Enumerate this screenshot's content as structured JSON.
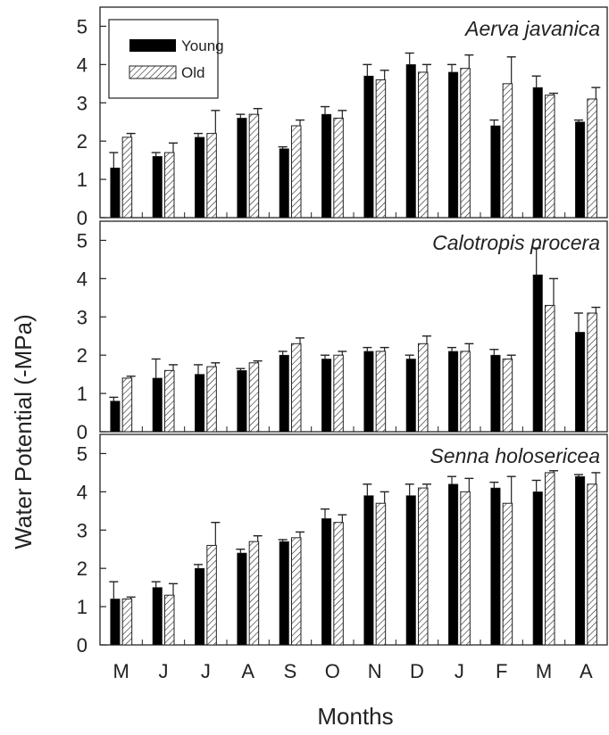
{
  "chart_data": {
    "type": "bar",
    "xlabel": "Months",
    "ylabel": "Water Potential (-MPa)",
    "categories": [
      "M",
      "J",
      "J",
      "A",
      "S",
      "O",
      "N",
      "D",
      "J",
      "F",
      "M",
      "A"
    ],
    "ylim": [
      0,
      5.5
    ],
    "yticks": [
      "0",
      "1",
      "2",
      "3",
      "4",
      "5"
    ],
    "legend": {
      "position": "top-left",
      "entries": [
        "Young",
        "Old"
      ]
    },
    "series_styles": {
      "Young": {
        "fill": "#000000"
      },
      "Old": {
        "fill": "hatched"
      }
    },
    "panels": [
      {
        "title": "Aerva javanica",
        "series": [
          {
            "name": "Young",
            "values": [
              1.3,
              1.6,
              2.1,
              2.6,
              1.8,
              2.7,
              3.7,
              4.0,
              3.8,
              2.4,
              3.4,
              2.5
            ],
            "errors": [
              0.4,
              0.1,
              0.1,
              0.1,
              0.05,
              0.2,
              0.3,
              0.3,
              0.2,
              0.15,
              0.3,
              0.05
            ]
          },
          {
            "name": "Old",
            "values": [
              2.1,
              1.7,
              2.2,
              2.7,
              2.4,
              2.6,
              3.6,
              3.8,
              3.9,
              3.5,
              3.2,
              3.1
            ],
            "errors": [
              0.1,
              0.25,
              0.6,
              0.15,
              0.15,
              0.2,
              0.25,
              0.2,
              0.35,
              0.7,
              0.05,
              0.3
            ]
          }
        ]
      },
      {
        "title": "Calotropis procera",
        "series": [
          {
            "name": "Young",
            "values": [
              0.8,
              1.4,
              1.5,
              1.6,
              2.0,
              1.9,
              2.1,
              1.9,
              2.1,
              2.0,
              4.1,
              2.6
            ],
            "errors": [
              0.1,
              0.5,
              0.25,
              0.05,
              0.1,
              0.1,
              0.1,
              0.1,
              0.1,
              0.15,
              0.7,
              0.5
            ]
          },
          {
            "name": "Old",
            "values": [
              1.4,
              1.6,
              1.7,
              1.8,
              2.3,
              2.0,
              2.1,
              2.3,
              2.1,
              1.9,
              3.3,
              3.1
            ],
            "errors": [
              0.05,
              0.15,
              0.1,
              0.05,
              0.15,
              0.1,
              0.1,
              0.2,
              0.2,
              0.1,
              0.7,
              0.15
            ]
          }
        ]
      },
      {
        "title": "Senna holosericea",
        "series": [
          {
            "name": "Young",
            "values": [
              1.2,
              1.5,
              2.0,
              2.4,
              2.7,
              3.3,
              3.9,
              3.9,
              4.2,
              4.1,
              4.0,
              4.4
            ],
            "errors": [
              0.45,
              0.15,
              0.1,
              0.1,
              0.05,
              0.25,
              0.3,
              0.3,
              0.2,
              0.15,
              0.3,
              0.05
            ]
          },
          {
            "name": "Old",
            "values": [
              1.2,
              1.3,
              2.6,
              2.7,
              2.8,
              3.2,
              3.7,
              4.1,
              4.0,
              3.7,
              4.5,
              4.2
            ],
            "errors": [
              0.05,
              0.3,
              0.6,
              0.15,
              0.15,
              0.2,
              0.3,
              0.1,
              0.35,
              0.7,
              0.05,
              0.3
            ]
          }
        ]
      }
    ]
  }
}
